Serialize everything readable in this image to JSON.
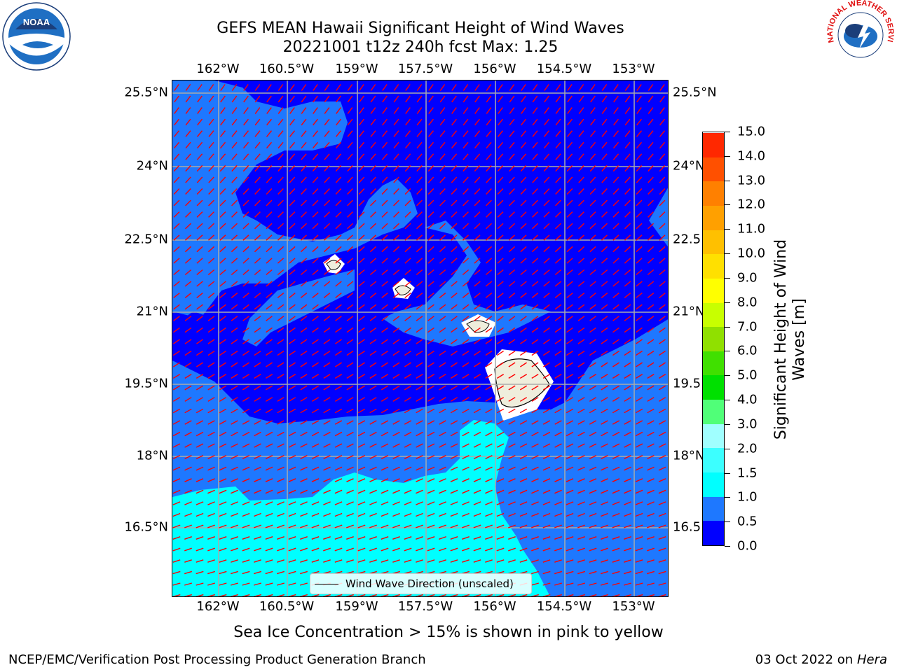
{
  "title_line1": "GEFS MEAN Hawaii Significant Height of Wind Waves",
  "title_line2": "20221001 t12z 240h fcst   Max: 1.25",
  "lon_labels": [
    "162°W",
    "160.5°W",
    "159°W",
    "157.5°W",
    "156°W",
    "154.5°W",
    "153°W"
  ],
  "lat_labels_left": [
    "25.5°N",
    "24°N",
    "22.5°N",
    "21°N",
    "19.5°N",
    "18°N",
    "16.5°N"
  ],
  "lat_labels_right": [
    "25.5°N",
    "24°N",
    "22.5",
    "21°N",
    "19.5",
    "18°N",
    "16.5"
  ],
  "legend_label": "Wind Wave Direction (unscaled)",
  "colorbar": {
    "title": "Significant Height of Wind Waves [m]",
    "tick_labels": [
      "0.0",
      "0.5",
      "1.0",
      "1.5",
      "2.0",
      "3.0",
      "4.0",
      "5.0",
      "6.0",
      "7.0",
      "8.0",
      "9.0",
      "10.0",
      "11.0",
      "12.0",
      "13.0",
      "14.0",
      "15.0"
    ],
    "colors": [
      "#0000ff",
      "#1e78ff",
      "#00ffff",
      "#3cffff",
      "#a0ffff",
      "#50ff78",
      "#00e000",
      "#40e000",
      "#90e000",
      "#c8ff00",
      "#ffff00",
      "#ffe000",
      "#ffc000",
      "#ffa000",
      "#ff8000",
      "#ff5000",
      "#ff2800",
      "#ff0000"
    ]
  },
  "sea_ice_note": "Sea Ice Concentration > 15% is shown in pink to yellow",
  "credit_left": "NCEP/EMC/Verification Post Processing Product Generation Branch",
  "credit_date": "03 Oct 2022 on ",
  "credit_host": "Hera",
  "logos": {
    "noaa_text": "NOAA",
    "nws_text": "NATIONAL WEATHER SERVICE"
  },
  "map_colors": {
    "low": "#0000ff",
    "mid": "#1e78ff",
    "high": "#00ffff",
    "land": "#efeedc",
    "arrow": "#ff0000",
    "grid": "#aaaaaa"
  }
}
